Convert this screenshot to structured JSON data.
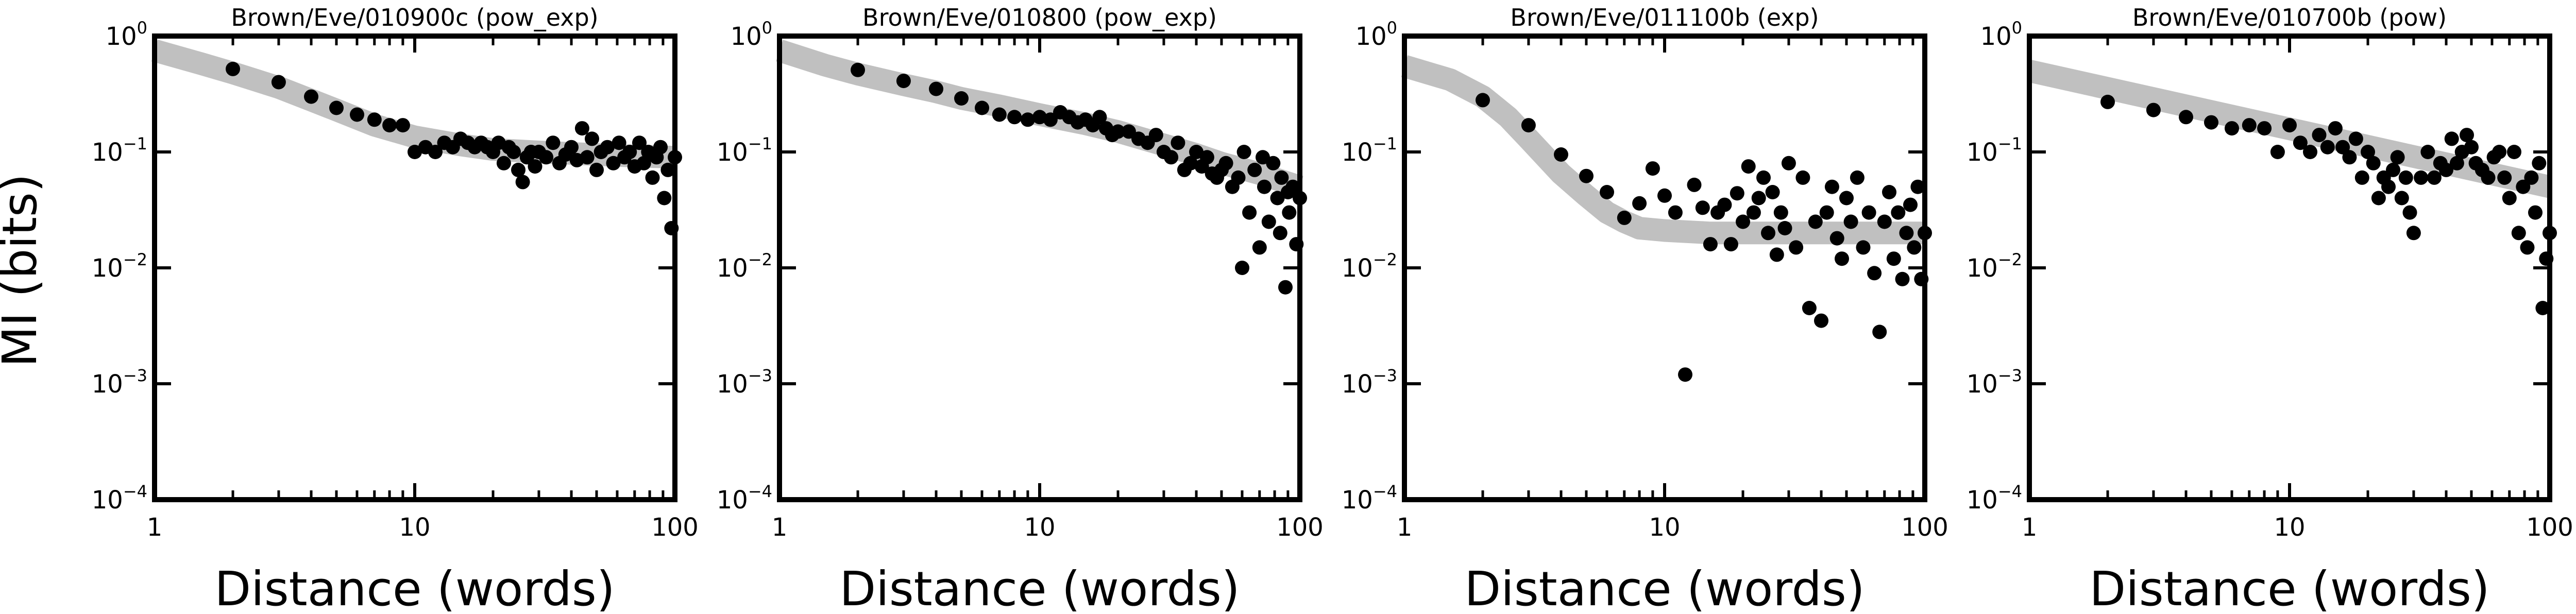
{
  "figure": {
    "ylabel": "MI (bits)"
  },
  "chart_data": [
    {
      "type": "scatter",
      "title": "Brown/Eve/010900c (pow_exp)",
      "xlabel": "Distance (words)",
      "ylabel": "MI (bits)",
      "xscale": "log",
      "yscale": "log",
      "xlim": [
        1,
        100
      ],
      "ylim": [
        0.0001,
        1
      ],
      "xticks": [
        "1",
        "10",
        "100"
      ],
      "yticks": [
        "10^0",
        "10^-1",
        "10^-2",
        "10^-3",
        "10^-4"
      ],
      "fit_color": "#c0c0c0",
      "point_color": "#000000",
      "fit": {
        "x": [
          1,
          1.5,
          2,
          3,
          4,
          5,
          7,
          10,
          15,
          20,
          30,
          50,
          70,
          100
        ],
        "y": [
          0.75,
          0.58,
          0.48,
          0.36,
          0.28,
          0.23,
          0.17,
          0.135,
          0.115,
          0.105,
          0.1,
          0.095,
          0.092,
          0.09
        ]
      },
      "points": {
        "x": [
          2,
          3,
          4,
          5,
          6,
          7,
          8,
          9,
          10,
          11,
          12,
          13,
          14,
          15,
          16,
          17,
          18,
          19,
          20,
          21,
          22,
          23,
          24,
          25,
          26,
          27,
          28,
          29,
          30,
          32,
          34,
          36,
          38,
          40,
          42,
          44,
          46,
          48,
          50,
          52,
          55,
          58,
          61,
          64,
          67,
          70,
          73,
          76,
          79,
          82,
          85,
          88,
          91,
          94,
          97,
          100
        ],
        "y": [
          0.52,
          0.4,
          0.3,
          0.24,
          0.21,
          0.19,
          0.17,
          0.17,
          0.1,
          0.11,
          0.1,
          0.12,
          0.11,
          0.13,
          0.12,
          0.11,
          0.12,
          0.11,
          0.1,
          0.12,
          0.08,
          0.11,
          0.1,
          0.07,
          0.055,
          0.09,
          0.1,
          0.075,
          0.1,
          0.09,
          0.12,
          0.08,
          0.095,
          0.11,
          0.085,
          0.16,
          0.09,
          0.13,
          0.07,
          0.1,
          0.11,
          0.08,
          0.12,
          0.09,
          0.1,
          0.075,
          0.12,
          0.08,
          0.1,
          0.06,
          0.09,
          0.11,
          0.04,
          0.07,
          0.022,
          0.09
        ]
      }
    },
    {
      "type": "scatter",
      "title": "Brown/Eve/010800 (pow_exp)",
      "xlabel": "Distance (words)",
      "ylabel": "",
      "xscale": "log",
      "yscale": "log",
      "xlim": [
        1,
        100
      ],
      "ylim": [
        0.0001,
        1
      ],
      "xticks": [
        "1",
        "10",
        "100"
      ],
      "yticks": [
        "10^0",
        "10^-1",
        "10^-2",
        "10^-3",
        "10^-4"
      ],
      "fit_color": "#c0c0c0",
      "point_color": "#000000",
      "fit": {
        "x": [
          1,
          1.5,
          2,
          3,
          4,
          5,
          7,
          10,
          15,
          20,
          30,
          40,
          50,
          70,
          100
        ],
        "y": [
          0.75,
          0.56,
          0.47,
          0.38,
          0.33,
          0.29,
          0.25,
          0.21,
          0.175,
          0.15,
          0.115,
          0.095,
          0.08,
          0.065,
          0.05
        ]
      },
      "points": {
        "x": [
          2,
          3,
          4,
          5,
          6,
          7,
          8,
          9,
          10,
          11,
          12,
          13,
          14,
          15,
          16,
          17,
          18,
          19,
          20,
          22,
          24,
          26,
          28,
          30,
          32,
          34,
          36,
          38,
          40,
          42,
          44,
          46,
          48,
          50,
          52,
          55,
          58,
          61,
          64,
          67,
          70,
          73,
          76,
          79,
          82,
          85,
          88,
          91,
          94,
          97,
          100,
          60,
          72,
          84,
          90
        ],
        "y": [
          0.51,
          0.41,
          0.35,
          0.29,
          0.24,
          0.21,
          0.2,
          0.19,
          0.2,
          0.19,
          0.22,
          0.2,
          0.18,
          0.19,
          0.17,
          0.2,
          0.16,
          0.14,
          0.15,
          0.15,
          0.13,
          0.12,
          0.14,
          0.1,
          0.09,
          0.12,
          0.07,
          0.08,
          0.1,
          0.075,
          0.09,
          0.065,
          0.06,
          0.07,
          0.08,
          0.05,
          0.06,
          0.1,
          0.03,
          0.07,
          0.015,
          0.05,
          0.025,
          0.08,
          0.04,
          0.06,
          0.0068,
          0.03,
          0.05,
          0.016,
          0.04,
          0.01,
          0.09,
          0.02,
          0.045
        ]
      }
    },
    {
      "type": "scatter",
      "title": "Brown/Eve/011100b (exp)",
      "xlabel": "Distance (words)",
      "ylabel": "",
      "xscale": "log",
      "yscale": "log",
      "xlim": [
        1,
        100
      ],
      "ylim": [
        0.0001,
        1
      ],
      "xticks": [
        "1",
        "10",
        "100"
      ],
      "yticks": [
        "10^0",
        "10^-1",
        "10^-2",
        "10^-3",
        "10^-4"
      ],
      "fit_color": "#c0c0c0",
      "point_color": "#000000",
      "fit": {
        "x": [
          1,
          1.5,
          2,
          2.5,
          3,
          4,
          5,
          6,
          7,
          8,
          10,
          15,
          20,
          40,
          100
        ],
        "y": [
          0.55,
          0.42,
          0.3,
          0.2,
          0.13,
          0.065,
          0.042,
          0.03,
          0.025,
          0.022,
          0.021,
          0.02,
          0.02,
          0.02,
          0.02
        ]
      },
      "points": {
        "x": [
          2,
          3,
          4,
          5,
          6,
          7,
          8,
          9,
          10,
          11,
          12,
          13,
          14,
          15,
          16,
          17,
          18,
          19,
          20,
          21,
          22,
          23,
          24,
          25,
          26,
          27,
          28,
          29,
          30,
          32,
          34,
          36,
          38,
          40,
          42,
          44,
          46,
          48,
          50,
          52,
          55,
          58,
          61,
          64,
          67,
          70,
          73,
          76,
          79,
          82,
          85,
          88,
          91,
          94,
          97,
          100
        ],
        "y": [
          0.28,
          0.17,
          0.095,
          0.062,
          0.045,
          0.027,
          0.036,
          0.072,
          0.042,
          0.03,
          0.0012,
          0.052,
          0.033,
          0.016,
          0.03,
          0.035,
          0.016,
          0.044,
          0.025,
          0.075,
          0.03,
          0.04,
          0.06,
          0.02,
          0.045,
          0.013,
          0.03,
          0.022,
          0.08,
          0.015,
          0.06,
          0.0045,
          0.025,
          0.0035,
          0.03,
          0.05,
          0.018,
          0.012,
          0.04,
          0.025,
          0.06,
          0.015,
          0.03,
          0.009,
          0.0028,
          0.025,
          0.045,
          0.012,
          0.03,
          0.008,
          0.02,
          0.035,
          0.015,
          0.05,
          0.008,
          0.02
        ]
      }
    },
    {
      "type": "scatter",
      "title": "Brown/Eve/010700b (pow)",
      "xlabel": "Distance (words)",
      "ylabel": "",
      "xscale": "log",
      "yscale": "log",
      "xlim": [
        1,
        100
      ],
      "ylim": [
        0.0001,
        1
      ],
      "xticks": [
        "1",
        "10",
        "100"
      ],
      "yticks": [
        "10^0",
        "10^-1",
        "10^-2",
        "10^-3",
        "10^-4"
      ],
      "fit_color": "#c0c0c0",
      "point_color": "#000000",
      "fit": {
        "x": [
          1,
          100
        ],
        "y": [
          0.5,
          0.05
        ]
      },
      "points": {
        "x": [
          2,
          3,
          4,
          5,
          6,
          7,
          8,
          9,
          10,
          11,
          12,
          13,
          14,
          15,
          16,
          17,
          18,
          19,
          20,
          21,
          22,
          23,
          24,
          25,
          26,
          27,
          28,
          29,
          30,
          32,
          34,
          36,
          38,
          40,
          42,
          44,
          46,
          48,
          50,
          52,
          55,
          58,
          61,
          64,
          67,
          70,
          73,
          76,
          79,
          82,
          85,
          88,
          91,
          94,
          97,
          100
        ],
        "y": [
          0.27,
          0.23,
          0.2,
          0.18,
          0.16,
          0.17,
          0.16,
          0.1,
          0.17,
          0.12,
          0.1,
          0.14,
          0.11,
          0.16,
          0.11,
          0.09,
          0.13,
          0.06,
          0.1,
          0.08,
          0.04,
          0.06,
          0.05,
          0.07,
          0.09,
          0.04,
          0.06,
          0.03,
          0.02,
          0.06,
          0.1,
          0.06,
          0.08,
          0.07,
          0.13,
          0.08,
          0.1,
          0.14,
          0.11,
          0.08,
          0.07,
          0.06,
          0.09,
          0.1,
          0.06,
          0.04,
          0.1,
          0.02,
          0.05,
          0.015,
          0.06,
          0.03,
          0.08,
          0.0045,
          0.012,
          0.02
        ]
      }
    }
  ]
}
